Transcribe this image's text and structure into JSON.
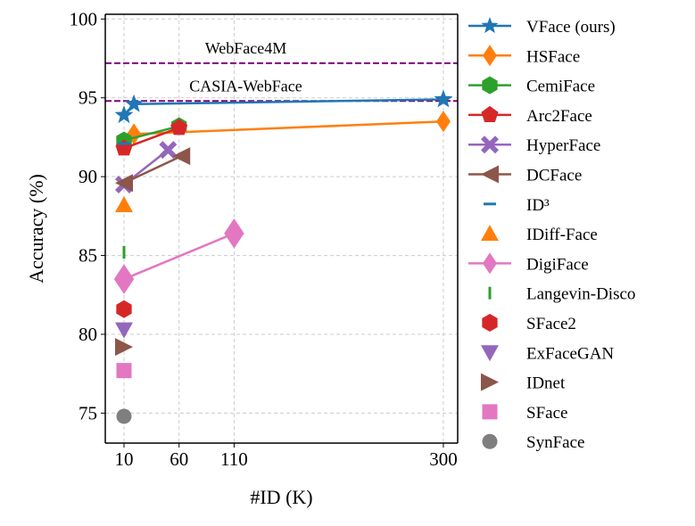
{
  "chart_data": {
    "type": "scatter",
    "xlabel": "#ID (K)",
    "ylabel": "Accuracy (%)",
    "xlim": [
      -7,
      313
    ],
    "ylim": [
      73.1,
      100.3
    ],
    "xticks": [
      10,
      60,
      110,
      300
    ],
    "yticks": [
      75,
      80,
      85,
      90,
      95,
      100
    ],
    "grid": true,
    "legend_placement": "outside-right",
    "reference_lines": [
      {
        "label": "WebFace4M",
        "y": 97.2,
        "color": "#800080"
      },
      {
        "label": "CASIA-WebFace",
        "y": 94.8,
        "color": "#800080"
      }
    ],
    "series": [
      {
        "name": "VFace (ours)",
        "color": "#1f77b4",
        "marker": "star",
        "line": true,
        "points": [
          [
            10,
            93.9
          ],
          [
            19,
            94.6
          ],
          [
            300,
            94.9
          ]
        ]
      },
      {
        "name": "HSFace",
        "color": "#ff7f0e",
        "marker": "diamond",
        "line": true,
        "points": [
          [
            10,
            92.0
          ],
          [
            19,
            92.7
          ],
          [
            300,
            93.5
          ]
        ]
      },
      {
        "name": "CemiFace",
        "color": "#2ca02c",
        "marker": "hexagon",
        "line": true,
        "points": [
          [
            10,
            92.3
          ],
          [
            60,
            93.2
          ]
        ]
      },
      {
        "name": "Arc2Face",
        "color": "#d62728",
        "marker": "pentagon",
        "line": true,
        "points": [
          [
            10,
            91.8
          ],
          [
            60,
            93.1
          ]
        ]
      },
      {
        "name": "HyperFace",
        "color": "#9467bd",
        "marker": "cross",
        "line": true,
        "points": [
          [
            10,
            89.5
          ],
          [
            50,
            91.7
          ]
        ]
      },
      {
        "name": "DCFace",
        "color": "#8c564b",
        "marker": "triangle-left",
        "line": true,
        "points": [
          [
            10,
            89.6
          ],
          [
            62,
            91.3
          ]
        ]
      },
      {
        "name": "ID³",
        "color": "#1f77b4",
        "marker": "hline",
        "line": false,
        "points": [
          [
            10,
            92.1
          ]
        ]
      },
      {
        "name": "IDiff-Face",
        "color": "#ff7f0e",
        "marker": "triangle-up",
        "line": false,
        "points": [
          [
            10,
            88.2
          ]
        ]
      },
      {
        "name": "DigiFace",
        "color": "#e377c2",
        "marker": "diamond",
        "line": true,
        "points": [
          [
            10,
            83.5
          ],
          [
            110,
            86.4
          ]
        ]
      },
      {
        "name": "Langevin-Disco",
        "color": "#2ca02c",
        "marker": "vline",
        "line": false,
        "points": [
          [
            10,
            85.2
          ]
        ]
      },
      {
        "name": "SFace2",
        "color": "#d62728",
        "marker": "hexagon",
        "line": false,
        "points": [
          [
            10,
            81.6
          ]
        ]
      },
      {
        "name": "ExFaceGAN",
        "color": "#9467bd",
        "marker": "triangle-down",
        "line": false,
        "points": [
          [
            10,
            80.3
          ]
        ]
      },
      {
        "name": "IDnet",
        "color": "#8c564b",
        "marker": "triangle-right",
        "line": false,
        "points": [
          [
            10,
            79.2
          ]
        ]
      },
      {
        "name": "SFace",
        "color": "#e377c2",
        "marker": "square",
        "line": false,
        "points": [
          [
            10,
            77.7
          ]
        ]
      },
      {
        "name": "SynFace",
        "color": "#7f7f7f",
        "marker": "circle",
        "line": false,
        "points": [
          [
            10,
            74.8
          ]
        ]
      }
    ]
  }
}
